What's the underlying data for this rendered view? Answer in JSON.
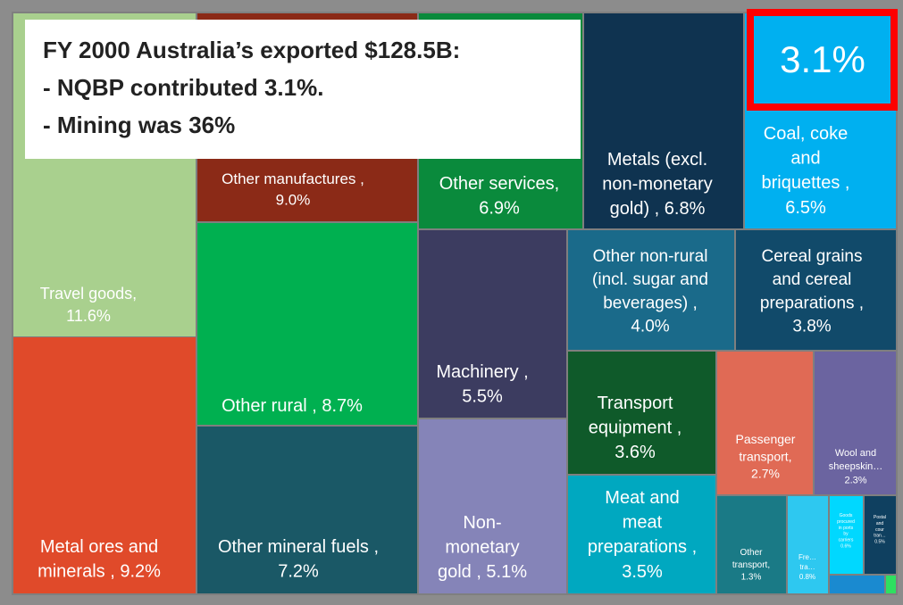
{
  "chart_data": {
    "type": "treemap",
    "annotation": [
      "FY 2000 Australia’s exported $128.5B:",
      "- NQBP contributed 3.1%.",
      "- Mining was 36%"
    ],
    "highlight": "3.1%",
    "labels": [
      "Travel goods,\n11.6%",
      "Metal ores and\nminerals , 9.2%",
      "Other manufactures ,\n9.0%",
      "Other rural , 8.7%",
      "Other mineral fuels ,\n7.2%",
      "Other services,\n6.9%",
      "Machinery ,\n5.5%",
      "Non-\nmonetary\ngold , 5.1%",
      "Metals (excl.\nnon-monetary\ngold) , 6.8%",
      "Coal, coke\nand\nbriquettes ,\n6.5%",
      "Other non-rural\n(incl. sugar and\nbeverages) ,\n4.0%",
      "Cereal grains\nand cereal\npreparations ,\n3.8%",
      "Transport\nequipment ,\n3.6%",
      "Meat and\nmeat\npreparations ,\n3.5%",
      "Passenger\ntransport,\n2.7%",
      "Wool and\nsheepskin…\n2.3%",
      "Other\ntransport,\n1.3%",
      "Fre…\ntra…\n0.8%",
      "Goods\nprocured\nin ports\nby\ncarriers\n0.6%",
      "Postal\nand\ncour\ntran…\n0.5%",
      null,
      null
    ],
    "values": [
      11.6,
      9.2,
      9.0,
      8.7,
      7.2,
      6.9,
      5.5,
      5.1,
      6.8,
      6.5,
      4.0,
      3.8,
      3.6,
      3.5,
      2.7,
      2.3,
      1.3,
      0.8,
      0.6,
      0.5,
      0.3,
      0.1
    ],
    "colors": [
      "#a9d08e",
      "#e04a2a",
      "#8b2a17",
      "#00b050",
      "#1a5866",
      "#0a8a3c",
      "#3c3c60",
      "#8584b8",
      "#0f3350",
      "#00b0f0",
      "#1a6a8a",
      "#114a6a",
      "#0f5a2a",
      "#00a8c0",
      "#e06a55",
      "#6b64a0",
      "#1a7a86",
      "#2ec8f0",
      "#00d8ff",
      "#0f4060",
      "#1a8ad0",
      "#2ee060"
    ]
  }
}
